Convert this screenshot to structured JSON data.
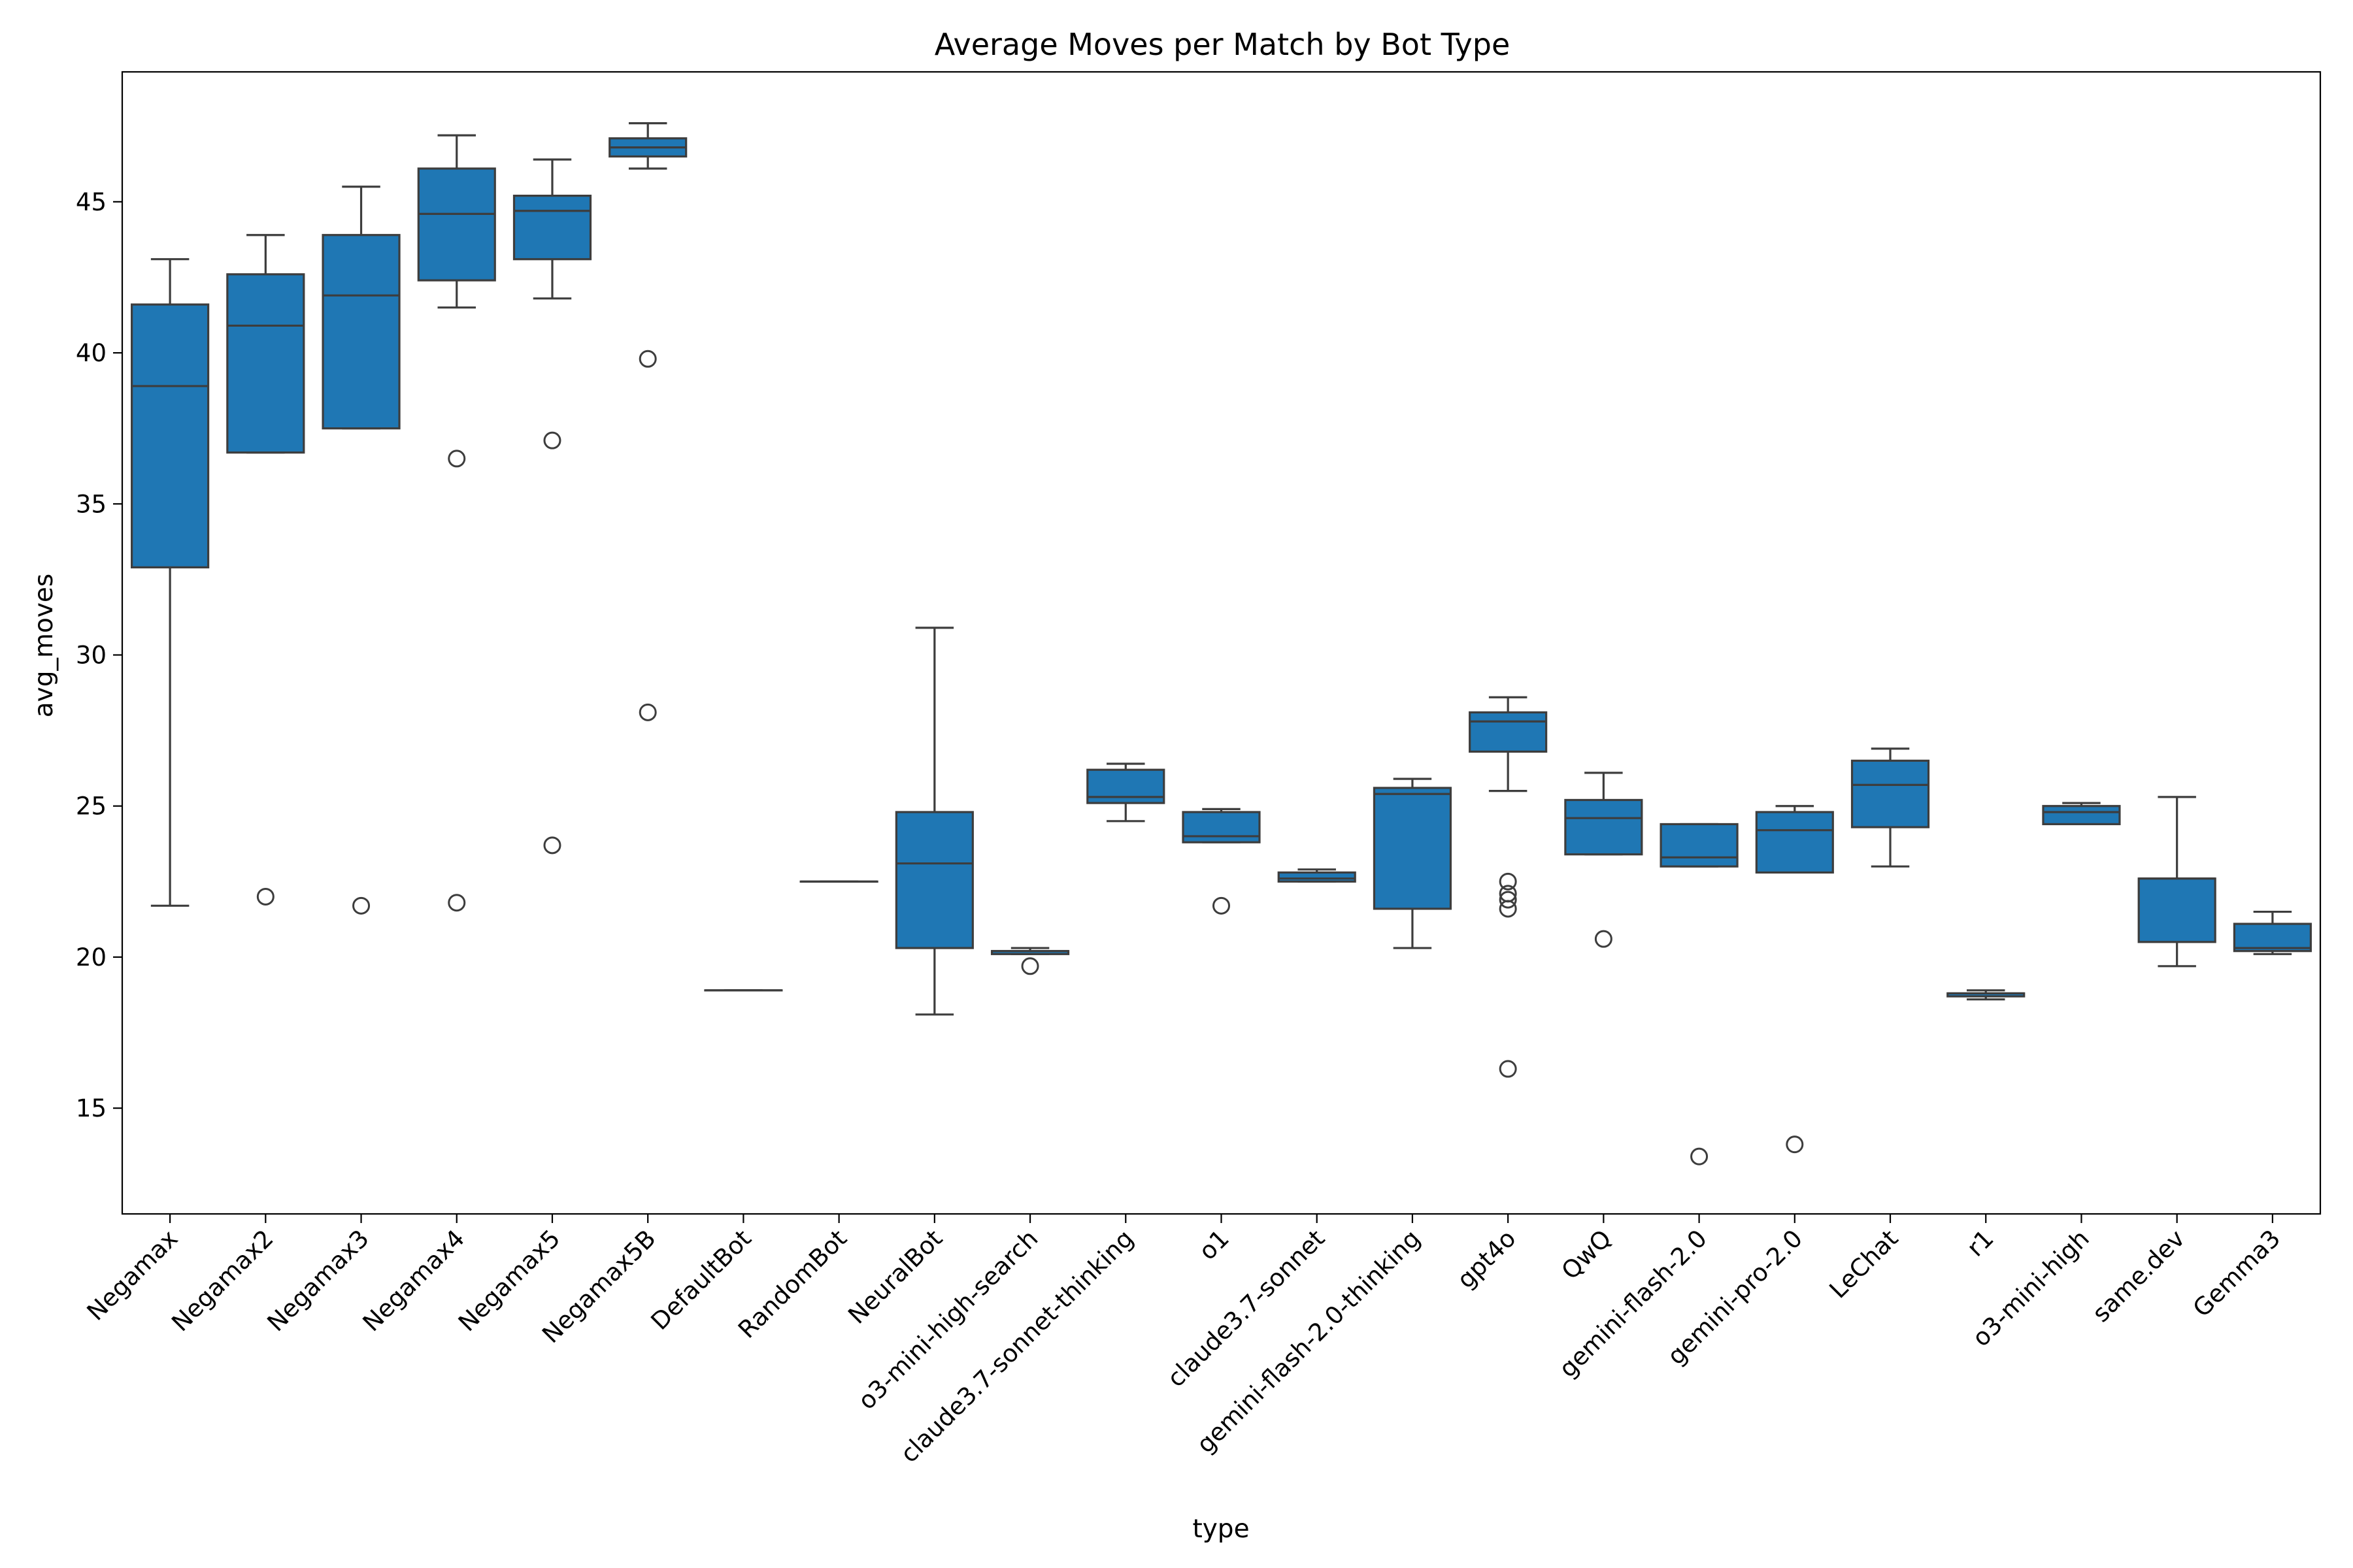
{
  "chart_data": {
    "type": "box",
    "title": "Average Moves per Match by Bot Type",
    "xlabel": "type",
    "ylabel": "avg_moves",
    "ylim": [
      11.5,
      49.3
    ],
    "yticks": [
      15,
      20,
      25,
      30,
      35,
      40,
      45
    ],
    "grid": false,
    "legend": "none",
    "box_color": "#1f77b4",
    "line_color": "#3d3d3d",
    "categories": [
      "Negamax",
      "Negamax2",
      "Negamax3",
      "Negamax4",
      "Negamax5",
      "Negamax5B",
      "DefaultBot",
      "RandomBot",
      "NeuralBot",
      "o3-mini-high-search",
      "claude3.7-sonnet-thinking",
      "o1",
      "claude3.7-sonnet",
      "gemini-flash-2.0-thinking",
      "gpt4o",
      "QwQ",
      "gemini-flash-2.0",
      "gemini-pro-2.0",
      "LeChat",
      "r1",
      "o3-mini-high",
      "same.dev",
      "Gemma3"
    ],
    "boxes": [
      {
        "category": "Negamax",
        "whisker_low": 21.7,
        "q1": 32.9,
        "median": 38.9,
        "q3": 41.6,
        "whisker_high": 43.1,
        "outliers": []
      },
      {
        "category": "Negamax2",
        "whisker_low": 36.7,
        "q1": 36.7,
        "median": 40.9,
        "q3": 42.6,
        "whisker_high": 43.9,
        "outliers": [
          22.0
        ]
      },
      {
        "category": "Negamax3",
        "whisker_low": 37.5,
        "q1": 37.5,
        "median": 41.9,
        "q3": 43.9,
        "whisker_high": 45.5,
        "outliers": [
          21.7
        ]
      },
      {
        "category": "Negamax4",
        "whisker_low": 41.5,
        "q1": 42.4,
        "median": 44.6,
        "q3": 46.1,
        "whisker_high": 47.2,
        "outliers": [
          36.5,
          21.8
        ]
      },
      {
        "category": "Negamax5",
        "whisker_low": 41.8,
        "q1": 43.1,
        "median": 44.7,
        "q3": 45.2,
        "whisker_high": 46.4,
        "outliers": [
          37.1,
          23.7
        ]
      },
      {
        "category": "Negamax5B",
        "whisker_low": 46.1,
        "q1": 46.5,
        "median": 46.8,
        "q3": 47.1,
        "whisker_high": 47.6,
        "outliers": [
          39.8,
          28.1
        ]
      },
      {
        "category": "DefaultBot",
        "whisker_low": 18.9,
        "q1": 18.9,
        "median": 18.9,
        "q3": 18.9,
        "whisker_high": 18.9,
        "outliers": []
      },
      {
        "category": "RandomBot",
        "whisker_low": 22.5,
        "q1": 22.5,
        "median": 22.5,
        "q3": 22.5,
        "whisker_high": 22.5,
        "outliers": []
      },
      {
        "category": "NeuralBot",
        "whisker_low": 18.1,
        "q1": 20.3,
        "median": 23.1,
        "q3": 24.8,
        "whisker_high": 30.9,
        "outliers": []
      },
      {
        "category": "o3-mini-high-search",
        "whisker_low": 20.1,
        "q1": 20.1,
        "median": 20.2,
        "q3": 20.2,
        "whisker_high": 20.3,
        "outliers": [
          19.7
        ]
      },
      {
        "category": "claude3.7-sonnet-thinking",
        "whisker_low": 24.5,
        "q1": 25.1,
        "median": 25.3,
        "q3": 26.2,
        "whisker_high": 26.4,
        "outliers": []
      },
      {
        "category": "o1",
        "whisker_low": 23.8,
        "q1": 23.8,
        "median": 24.0,
        "q3": 24.8,
        "whisker_high": 24.9,
        "outliers": [
          21.7
        ]
      },
      {
        "category": "claude3.7-sonnet",
        "whisker_low": 22.5,
        "q1": 22.5,
        "median": 22.6,
        "q3": 22.8,
        "whisker_high": 22.9,
        "outliers": []
      },
      {
        "category": "gemini-flash-2.0-thinking",
        "whisker_low": 20.3,
        "q1": 21.6,
        "median": 25.4,
        "q3": 25.6,
        "whisker_high": 25.9,
        "outliers": []
      },
      {
        "category": "gpt4o",
        "whisker_low": 25.5,
        "q1": 26.8,
        "median": 27.8,
        "q3": 28.1,
        "whisker_high": 28.6,
        "outliers": [
          22.5,
          22.1,
          21.9,
          21.6,
          16.3
        ]
      },
      {
        "category": "QwQ",
        "whisker_low": 23.4,
        "q1": 23.4,
        "median": 24.6,
        "q3": 25.2,
        "whisker_high": 26.1,
        "outliers": [
          20.6
        ]
      },
      {
        "category": "gemini-flash-2.0",
        "whisker_low": 23.0,
        "q1": 23.0,
        "median": 23.3,
        "q3": 24.4,
        "whisker_high": 24.4,
        "outliers": [
          13.4
        ]
      },
      {
        "category": "gemini-pro-2.0",
        "whisker_low": 22.8,
        "q1": 22.8,
        "median": 24.2,
        "q3": 24.8,
        "whisker_high": 25.0,
        "outliers": [
          13.8
        ]
      },
      {
        "category": "LeChat",
        "whisker_low": 23.0,
        "q1": 24.3,
        "median": 25.7,
        "q3": 26.5,
        "whisker_high": 26.9,
        "outliers": []
      },
      {
        "category": "r1",
        "whisker_low": 18.6,
        "q1": 18.7,
        "median": 18.8,
        "q3": 18.8,
        "whisker_high": 18.9,
        "outliers": []
      },
      {
        "category": "o3-mini-high",
        "whisker_low": 24.4,
        "q1": 24.4,
        "median": 24.8,
        "q3": 25.0,
        "whisker_high": 25.1,
        "outliers": []
      },
      {
        "category": "same.dev",
        "whisker_low": 19.7,
        "q1": 20.5,
        "median": 22.6,
        "q3": 22.6,
        "whisker_high": 25.3,
        "outliers": []
      },
      {
        "category": "Gemma3",
        "whisker_low": 20.1,
        "q1": 20.2,
        "median": 20.3,
        "q3": 21.1,
        "whisker_high": 21.5,
        "outliers": []
      }
    ]
  }
}
